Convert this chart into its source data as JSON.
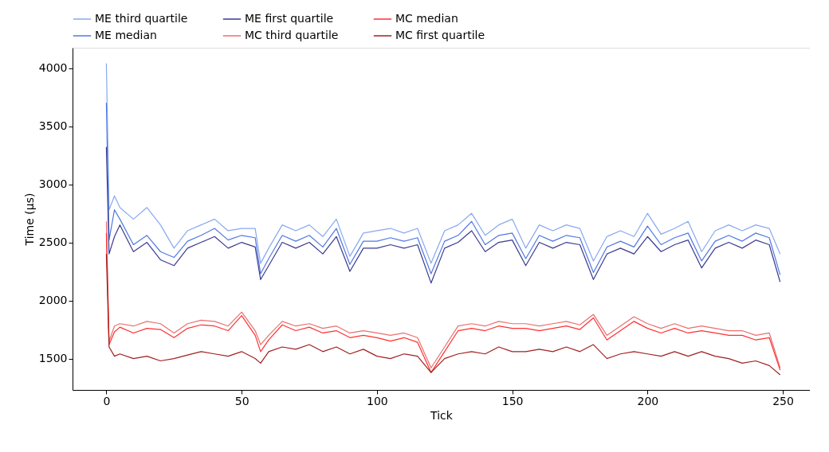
{
  "chart_data": {
    "type": "line",
    "xlabel": "Tick",
    "ylabel": "Time (µs)",
    "xlim": [
      -12.5,
      260
    ],
    "ylim": [
      1230,
      4175
    ],
    "xticks": [
      0,
      50,
      100,
      150,
      200,
      250
    ],
    "yticks": [
      1500,
      2000,
      2500,
      3000,
      3500,
      4000
    ],
    "grid": false,
    "legend": "top",
    "marker": "none",
    "line_style": "solid",
    "x": [
      0,
      1,
      3,
      5,
      10,
      15,
      20,
      25,
      30,
      35,
      40,
      45,
      50,
      55,
      57,
      60,
      65,
      70,
      75,
      80,
      85,
      90,
      95,
      100,
      105,
      110,
      115,
      120,
      125,
      130,
      135,
      140,
      145,
      150,
      155,
      160,
      165,
      170,
      175,
      180,
      185,
      190,
      195,
      200,
      205,
      210,
      215,
      220,
      225,
      230,
      235,
      240,
      245,
      249
    ],
    "series": [
      {
        "name": "ME third quartile",
        "color": "#87a8f0",
        "values": [
          4040,
          2780,
          2900,
          2800,
          2700,
          2800,
          2650,
          2450,
          2600,
          2650,
          2700,
          2600,
          2620,
          2620,
          2320,
          2450,
          2650,
          2600,
          2650,
          2550,
          2700,
          2380,
          2580,
          2600,
          2620,
          2580,
          2620,
          2320,
          2600,
          2650,
          2750,
          2560,
          2650,
          2700,
          2450,
          2650,
          2600,
          2650,
          2620,
          2340,
          2550,
          2600,
          2550,
          2750,
          2570,
          2620,
          2680,
          2420,
          2600,
          2650,
          2600,
          2650,
          2620,
          2400
        ]
      },
      {
        "name": "ME median",
        "color": "#5078e0",
        "values": [
          3700,
          2520,
          2780,
          2700,
          2480,
          2560,
          2420,
          2370,
          2510,
          2560,
          2620,
          2520,
          2560,
          2540,
          2230,
          2360,
          2560,
          2510,
          2560,
          2460,
          2620,
          2310,
          2510,
          2510,
          2540,
          2510,
          2540,
          2230,
          2510,
          2560,
          2680,
          2480,
          2560,
          2580,
          2360,
          2560,
          2510,
          2560,
          2540,
          2240,
          2460,
          2510,
          2460,
          2640,
          2480,
          2540,
          2580,
          2340,
          2510,
          2560,
          2510,
          2580,
          2540,
          2220
        ]
      },
      {
        "name": "ME first quartile",
        "color": "#3a3a90",
        "values": [
          3320,
          2400,
          2550,
          2650,
          2420,
          2500,
          2350,
          2300,
          2450,
          2500,
          2550,
          2450,
          2500,
          2460,
          2180,
          2300,
          2500,
          2450,
          2500,
          2400,
          2550,
          2250,
          2450,
          2450,
          2480,
          2450,
          2480,
          2150,
          2450,
          2500,
          2600,
          2420,
          2500,
          2520,
          2300,
          2500,
          2450,
          2500,
          2480,
          2180,
          2400,
          2450,
          2400,
          2550,
          2420,
          2480,
          2520,
          2280,
          2450,
          2500,
          2450,
          2520,
          2480,
          2160
        ]
      },
      {
        "name": "MC third quartile",
        "color": "#e87070",
        "values": [
          2680,
          1650,
          1780,
          1800,
          1780,
          1820,
          1800,
          1720,
          1800,
          1830,
          1820,
          1780,
          1900,
          1740,
          1620,
          1700,
          1820,
          1780,
          1800,
          1760,
          1780,
          1720,
          1740,
          1720,
          1700,
          1720,
          1680,
          1420,
          1600,
          1780,
          1800,
          1780,
          1820,
          1800,
          1800,
          1780,
          1800,
          1820,
          1790,
          1880,
          1700,
          1780,
          1860,
          1800,
          1760,
          1800,
          1760,
          1780,
          1760,
          1740,
          1740,
          1700,
          1720,
          1420
        ]
      },
      {
        "name": "MC median",
        "color": "#ff3030",
        "values": [
          2580,
          1620,
          1730,
          1770,
          1720,
          1760,
          1750,
          1680,
          1760,
          1790,
          1780,
          1740,
          1870,
          1700,
          1560,
          1660,
          1790,
          1740,
          1770,
          1720,
          1740,
          1680,
          1700,
          1680,
          1650,
          1680,
          1640,
          1380,
          1560,
          1740,
          1760,
          1740,
          1780,
          1760,
          1760,
          1740,
          1760,
          1780,
          1750,
          1850,
          1660,
          1740,
          1820,
          1760,
          1720,
          1760,
          1720,
          1740,
          1720,
          1700,
          1700,
          1660,
          1680,
          1400
        ]
      },
      {
        "name": "MC first quartile",
        "color": "#a02020",
        "values": [
          2400,
          1600,
          1520,
          1540,
          1500,
          1520,
          1480,
          1500,
          1530,
          1560,
          1540,
          1520,
          1560,
          1500,
          1460,
          1560,
          1600,
          1580,
          1620,
          1560,
          1600,
          1540,
          1580,
          1520,
          1500,
          1540,
          1520,
          1380,
          1500,
          1540,
          1560,
          1540,
          1600,
          1560,
          1560,
          1580,
          1560,
          1600,
          1560,
          1620,
          1500,
          1540,
          1560,
          1540,
          1520,
          1560,
          1520,
          1560,
          1520,
          1500,
          1460,
          1480,
          1440,
          1360
        ]
      }
    ]
  }
}
